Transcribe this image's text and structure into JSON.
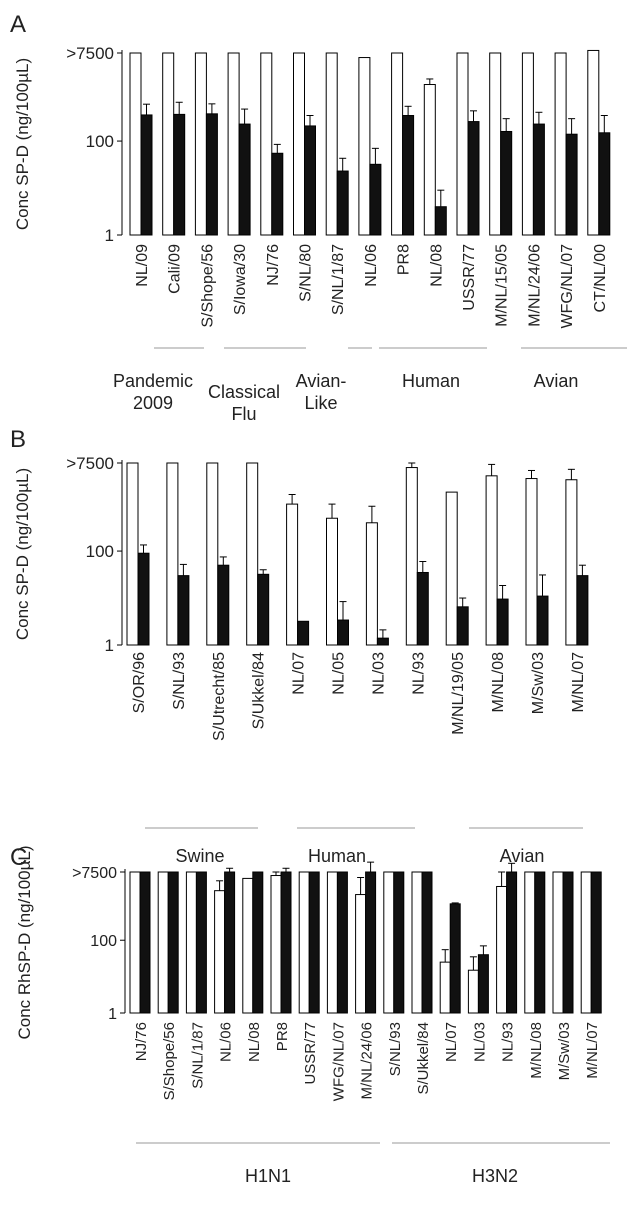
{
  "chart_data": [
    {
      "type": "bar",
      "panel": "A",
      "ylabel": "Conc SP-D (ng/100µL)",
      "y_scale": "log",
      "ylim": [
        1,
        7500
      ],
      "y_ticks": [
        "1",
        "100",
        ">7500"
      ],
      "categories": [
        "NL/09",
        "Cali/09",
        "S/Shope/56",
        "S/Iowa/30",
        "NJ/76",
        "S/NL/80",
        "S/NL/1/87",
        "NL/06",
        "PR8",
        "NL/08",
        "USSR/77",
        "M/NL/15/05",
        "M/NL/24/06",
        "WFG/NL/07",
        "CT/NL/00"
      ],
      "series": [
        {
          "color": "#ffffff",
          "values": [
            7500,
            7500,
            7500,
            7500,
            7500,
            7500,
            7500,
            6000,
            7500,
            1600,
            7500,
            7500,
            7500,
            7500,
            8500
          ],
          "err": [
            0,
            0,
            0,
            0,
            0,
            0,
            0,
            0,
            0,
            500,
            0,
            0,
            0,
            0,
            0
          ]
        },
        {
          "color": "#111111",
          "values": [
            360,
            370,
            380,
            230,
            55,
            210,
            23,
            32,
            350,
            4,
            260,
            160,
            230,
            140,
            150
          ],
          "err": [
            250,
            300,
            240,
            250,
            30,
            140,
            20,
            38,
            200,
            5,
            180,
            140,
            180,
            160,
            200
          ]
        }
      ],
      "groups": [
        {
          "label": "Pandemic 2009",
          "lines": [
            "Pandemic",
            "2009"
          ]
        },
        {
          "label": "Classical Flu",
          "lines": [
            "Classical",
            "Flu"
          ]
        },
        {
          "label": "Avian-Like",
          "lines": [
            "Avian-",
            "Like"
          ]
        },
        {
          "label": "Human",
          "lines": [
            "Human"
          ]
        },
        {
          "label": "Avian",
          "lines": [
            "Avian"
          ]
        }
      ]
    },
    {
      "type": "bar",
      "panel": "B",
      "ylabel": "Conc SP-D (ng/100µL)",
      "y_scale": "log",
      "ylim": [
        1,
        7500
      ],
      "y_ticks": [
        "1",
        "100",
        ">7500"
      ],
      "categories": [
        "S/OR/96",
        "S/NL/93",
        "S/Utrecht/85",
        "S/Ukkel/84",
        "NL/07",
        "NL/05",
        "NL/03",
        "NL/93",
        "M/NL/19/05",
        "M/NL/08",
        "M/Sw/03",
        "M/NL/07"
      ],
      "series": [
        {
          "color": "#ffffff",
          "values": [
            7500,
            7500,
            7500,
            7500,
            1000,
            500,
            400,
            6000,
            1800,
            4000,
            3500,
            3300
          ],
          "err": [
            0,
            0,
            0,
            0,
            600,
            500,
            500,
            1500,
            0,
            3000,
            1700,
            2200
          ]
        },
        {
          "color": "#111111",
          "values": [
            90,
            30,
            50,
            32,
            3.2,
            3.4,
            1.4,
            35,
            6.5,
            9.5,
            11,
            30
          ],
          "err": [
            45,
            22,
            25,
            8,
            0,
            5,
            0.7,
            25,
            3.5,
            9,
            20,
            20
          ]
        }
      ],
      "groups": [
        {
          "label": "Swine",
          "lines": [
            "Swine"
          ]
        },
        {
          "label": "Human",
          "lines": [
            "Human"
          ]
        },
        {
          "label": "Avian",
          "lines": [
            "Avian"
          ]
        }
      ]
    },
    {
      "type": "bar",
      "panel": "C",
      "ylabel": "Conc RhSP-D (ng/100µL)",
      "y_scale": "log",
      "ylim": [
        1,
        7500
      ],
      "y_ticks": [
        "1",
        "100",
        ">7500"
      ],
      "categories": [
        "NJ/76",
        "S/Shope/56",
        "S/NL/1/87",
        "NL/06",
        "NL/08",
        "PR8",
        "USSR/77",
        "WFG/NL/07",
        "M/NL/24/06",
        "S/NL/93",
        "S/Ukkel/84",
        "NL/07",
        "NL/03",
        "NL/93",
        "M/NL/08",
        "M/Sw/03",
        "M/NL/07"
      ],
      "series": [
        {
          "color": "#ffffff",
          "values": [
            7500,
            7500,
            7500,
            2300,
            5000,
            6000,
            7500,
            7500,
            1800,
            7500,
            7500,
            25,
            15,
            3000,
            7500,
            7500,
            7500
          ],
          "err": [
            0,
            0,
            0,
            2000,
            0,
            1500,
            0,
            0,
            3500,
            0,
            0,
            30,
            20,
            4500,
            0,
            0,
            0
          ]
        },
        {
          "color": "#111111",
          "values": [
            7500,
            7500,
            7500,
            7500,
            7500,
            7500,
            7500,
            7500,
            7500,
            7500,
            7500,
            1000,
            40,
            7500,
            7500,
            7500,
            7500
          ],
          "err": [
            0,
            0,
            0,
            2000,
            0,
            2000,
            0,
            0,
            6500,
            0,
            0,
            60,
            30,
            5500,
            0,
            0,
            0
          ]
        }
      ],
      "groups": [
        {
          "label": "H1N1",
          "lines": [
            "H1N1"
          ]
        },
        {
          "label": "H3N2",
          "lines": [
            "H3N2"
          ]
        }
      ]
    }
  ]
}
